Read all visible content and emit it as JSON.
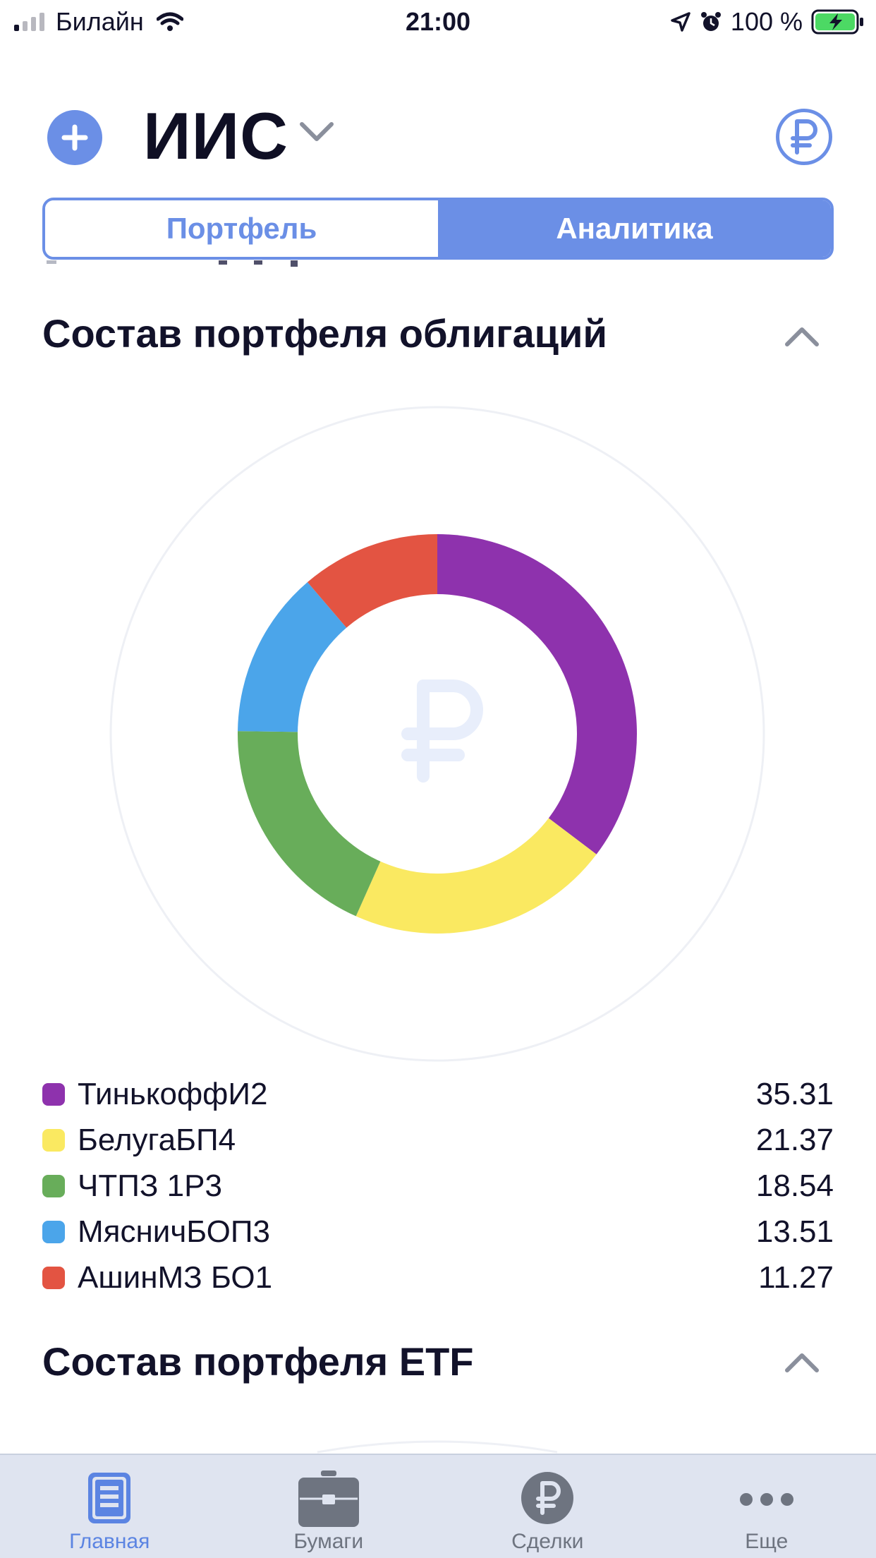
{
  "status_bar": {
    "carrier": "Билайн",
    "time": "21:00",
    "battery": "100 %"
  },
  "header": {
    "account_title": "ИИС"
  },
  "tabs": [
    {
      "label": "Портфель",
      "active": false
    },
    {
      "label": "Аналитика",
      "active": true
    }
  ],
  "sections": {
    "bonds_title": "Состав портфеля облигаций",
    "etf_title": "Состав портфеля ETF"
  },
  "chart_data": {
    "type": "pie",
    "title": "Состав портфеля облигаций",
    "categories": [
      "ТинькоффИ2",
      "БелугаБП4",
      "ЧТПЗ 1Р3",
      "МясничБОП3",
      "АшинМЗ БО1"
    ],
    "values": [
      35.31,
      21.37,
      18.54,
      13.51,
      11.27
    ],
    "value_labels": [
      "35.31",
      "21.37",
      "18.54",
      "13.51",
      "11.27"
    ],
    "colors": [
      "#8e32ad",
      "#fae961",
      "#68ad5a",
      "#4ba5ea",
      "#e35442"
    ],
    "legend": "bottom"
  },
  "tab_bar": {
    "items": [
      {
        "label": "Главная",
        "icon": "document-icon",
        "active": true
      },
      {
        "label": "Бумаги",
        "icon": "briefcase-icon",
        "active": false
      },
      {
        "label": "Сделки",
        "icon": "ruble-coin-icon",
        "active": false
      },
      {
        "label": "Еще",
        "icon": "more-icon",
        "active": false
      }
    ]
  }
}
